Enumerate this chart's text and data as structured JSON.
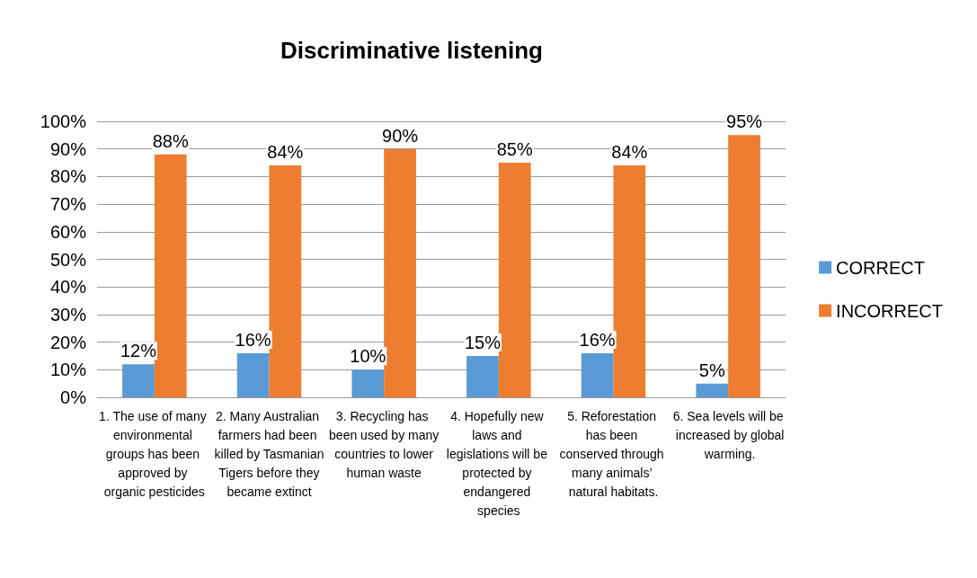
{
  "chart_data": {
    "type": "bar",
    "title": "Discriminative listening",
    "categories": [
      "1. The use of many environmental groups has been approved by organic pesticides",
      "2. Many Australian farmers had been killed by Tasmanian Tigers before they became extinct",
      "3. Recycling has been used by many countries to lower human waste",
      "4. Hopefully new laws and legislations will be protected by endangered species",
      "5. Reforestation has been conserved through many animals’ natural habitats.",
      "6. Sea levels will be increased by global warming."
    ],
    "series": [
      {
        "name": "CORRECT",
        "color": "#5b9bd5",
        "values": [
          12,
          16,
          10,
          15,
          16,
          5
        ],
        "value_labels": [
          "12%",
          "16%",
          "10%",
          "15%",
          "16%",
          "5%"
        ]
      },
      {
        "name": "INCORRECT",
        "color": "#ed7d31",
        "values": [
          88,
          84,
          90,
          85,
          84,
          95
        ],
        "value_labels": [
          "88%",
          "84%",
          "90%",
          "85%",
          "84%",
          "95%"
        ]
      }
    ],
    "ylim": [
      0,
      100
    ],
    "yticks": [
      {
        "value": 0,
        "label": "0%"
      },
      {
        "value": 10,
        "label": "10%"
      },
      {
        "value": 20,
        "label": "20%"
      },
      {
        "value": 30,
        "label": "30%"
      },
      {
        "value": 40,
        "label": "40%"
      },
      {
        "value": 50,
        "label": "50%"
      },
      {
        "value": 60,
        "label": "60%"
      },
      {
        "value": 70,
        "label": "70%"
      },
      {
        "value": 80,
        "label": "80%"
      },
      {
        "value": 90,
        "label": "90%"
      },
      {
        "value": 100,
        "label": "100%"
      }
    ],
    "grid": "y",
    "legend": "right"
  }
}
